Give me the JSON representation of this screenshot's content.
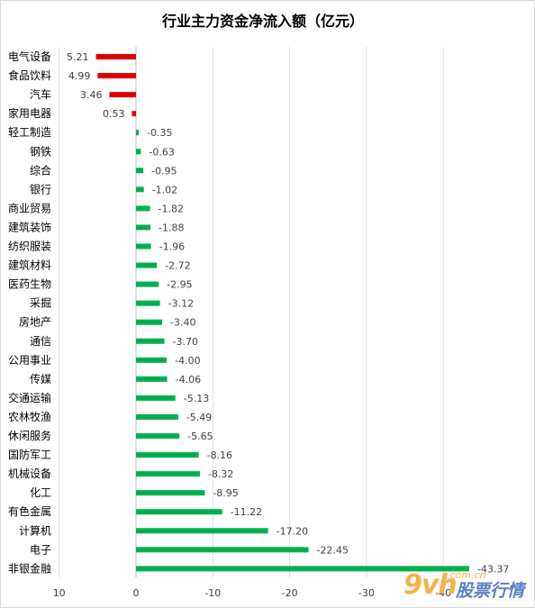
{
  "chart_data": {
    "type": "bar",
    "orientation": "horizontal",
    "title": "行业主力资金净流入额（亿元）",
    "xlabel": "",
    "ylabel": "",
    "x_axis_reversed": true,
    "xlim": [
      -45,
      10
    ],
    "xticks": [
      10,
      0,
      -10,
      -20,
      -30,
      -40
    ],
    "xtick_labels": [
      "10",
      "0",
      "-10",
      "-20",
      "-30",
      "-40"
    ],
    "grid": true,
    "legend": "none",
    "colors": {
      "positive": "#e00000",
      "negative": "#00b050"
    },
    "categories": [
      "电气设备",
      "食品饮料",
      "汽车",
      "家用电器",
      "轻工制造",
      "钢铁",
      "综合",
      "银行",
      "商业贸易",
      "建筑装饰",
      "纺织服装",
      "建筑材料",
      "医药生物",
      "采掘",
      "房地产",
      "通信",
      "公用事业",
      "传媒",
      "交通运输",
      "农林牧渔",
      "休闲服务",
      "国防军工",
      "机械设备",
      "化工",
      "有色金属",
      "计算机",
      "电子",
      "非银金融"
    ],
    "values": [
      5.21,
      4.99,
      3.46,
      0.53,
      -0.35,
      -0.63,
      -0.95,
      -1.02,
      -1.82,
      -1.88,
      -1.96,
      -2.72,
      -2.95,
      -3.12,
      -3.4,
      -3.7,
      -4.0,
      -4.06,
      -5.13,
      -5.49,
      -5.65,
      -8.16,
      -8.32,
      -8.95,
      -11.22,
      -17.2,
      -22.45,
      -43.37
    ],
    "value_labels": [
      "5.21",
      "4.99",
      "3.46",
      "0.53",
      "-0.35",
      "-0.63",
      "-0.95",
      "-1.02",
      "-1.82",
      "-1.88",
      "-1.96",
      "-2.72",
      "-2.95",
      "-3.12",
      "-3.40",
      "-3.70",
      "-4.00",
      "-4.06",
      "-5.13",
      "-5.49",
      "-5.65",
      "-8.16",
      "-8.32",
      "-8.95",
      "-11.22",
      "-17.20",
      "-22.45",
      "-43.37"
    ]
  },
  "watermark": {
    "main": "9vh",
    "small": ".com.cn",
    "cn": "股票行情"
  }
}
